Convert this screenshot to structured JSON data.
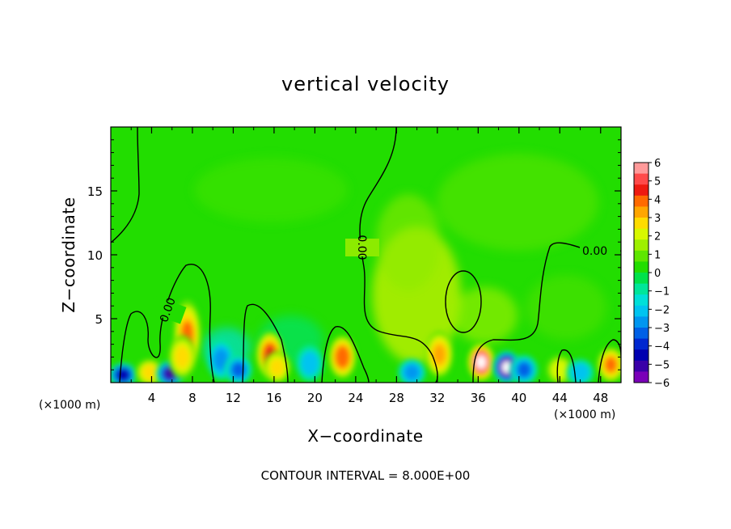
{
  "chart_data": {
    "type": "heatmap",
    "title": "vertical velocity",
    "xlabel": "X−coordinate",
    "ylabel": "Z−coordinate",
    "x_unit": "(×1000 m)",
    "y_unit": "(×1000 m)",
    "xlim": [
      0,
      50
    ],
    "ylim": [
      0,
      20
    ],
    "x_ticks": [
      4,
      8,
      12,
      16,
      20,
      24,
      28,
      32,
      36,
      40,
      44,
      48
    ],
    "y_ticks": [
      5,
      10,
      15
    ],
    "colorbar": {
      "ticks": [
        6,
        5,
        4,
        3,
        2,
        1,
        0,
        -1,
        -2,
        -3,
        -4,
        -5,
        -6
      ],
      "tick_labels": [
        "6",
        "5",
        "4",
        "3",
        "2",
        "1",
        "0",
        "−1",
        "−2",
        "−3",
        "−4",
        "−5",
        "−6"
      ],
      "colors": [
        "#ff9a9a",
        "#ff4a4a",
        "#ee1a10",
        "#ff6a00",
        "#ffa600",
        "#ffdc00",
        "#d8f800",
        "#9ef000",
        "#5ee600",
        "#22dd00",
        "#00e24a",
        "#00e69a",
        "#00e0d8",
        "#00c4f0",
        "#0096f0",
        "#0060e6",
        "#0028d0",
        "#0000b0",
        "#3a00a8",
        "#7a00b8"
      ]
    },
    "contour_labels": [
      "0.00",
      "0.00",
      "0.00"
    ],
    "features": [
      {
        "x": 1.2,
        "z": 0.6,
        "w": -4.5
      },
      {
        "x": 3.8,
        "z": 0.8,
        "w": 2.5
      },
      {
        "x": 5.8,
        "z": 0.7,
        "w": -4.8
      },
      {
        "x": 7.5,
        "z": 3.8,
        "w": 4.0
      },
      {
        "x": 7.0,
        "z": 2.0,
        "w": 2.5
      },
      {
        "x": 10.8,
        "z": 1.8,
        "w": -2.5
      },
      {
        "x": 12.5,
        "z": 1.0,
        "w": -3.0
      },
      {
        "x": 15.6,
        "z": 2.2,
        "w": 4.5
      },
      {
        "x": 16.3,
        "z": 1.2,
        "w": 3.0
      },
      {
        "x": 19.5,
        "z": 1.5,
        "w": -1.8
      },
      {
        "x": 22.7,
        "z": 2.0,
        "w": 4.2
      },
      {
        "x": 29.5,
        "z": 0.8,
        "w": -2.5
      },
      {
        "x": 32.2,
        "z": 2.2,
        "w": 3.2
      },
      {
        "x": 36.3,
        "z": 1.6,
        "w": 6.5
      },
      {
        "x": 38.8,
        "z": 1.2,
        "w": -6.5
      },
      {
        "x": 40.5,
        "z": 1.0,
        "w": -3.0
      },
      {
        "x": 44.0,
        "z": 1.0,
        "w": 2.0
      },
      {
        "x": 46.0,
        "z": 0.8,
        "w": -2.0
      },
      {
        "x": 49.0,
        "z": 1.4,
        "w": 4.0
      }
    ]
  },
  "footer": {
    "contour_interval": "CONTOUR INTERVAL = 8.000E+00"
  }
}
